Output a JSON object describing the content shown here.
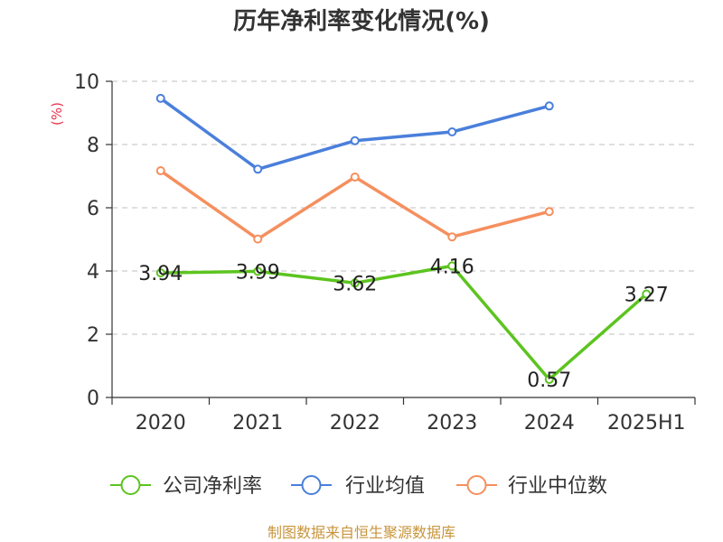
{
  "chart_data": {
    "type": "line",
    "title": "历年净利率变化情况(%)",
    "ylabel": "(%)",
    "xlabel": "",
    "categories": [
      "2020",
      "2021",
      "2022",
      "2023",
      "2024",
      "2025H1"
    ],
    "ylim": [
      0,
      10
    ],
    "yticks": [
      0,
      2,
      4,
      6,
      8,
      10
    ],
    "grid": true,
    "legend_position": "bottom",
    "series": [
      {
        "name": "公司净利率",
        "color": "#5cc41f",
        "values": [
          3.94,
          3.99,
          3.62,
          4.16,
          0.57,
          3.27
        ],
        "labels": [
          "3.94",
          "3.99",
          "3.62",
          "4.16",
          "0.57",
          "3.27"
        ]
      },
      {
        "name": "行业均值",
        "color": "#4a7fdb",
        "values": [
          9.46,
          7.22,
          8.12,
          8.4,
          9.22,
          null
        ]
      },
      {
        "name": "行业中位数",
        "color": "#f58f5e",
        "values": [
          7.17,
          5.01,
          6.97,
          5.08,
          5.88,
          null
        ]
      }
    ]
  },
  "footer": {
    "source": "制图数据来自恒生聚源数据库"
  }
}
